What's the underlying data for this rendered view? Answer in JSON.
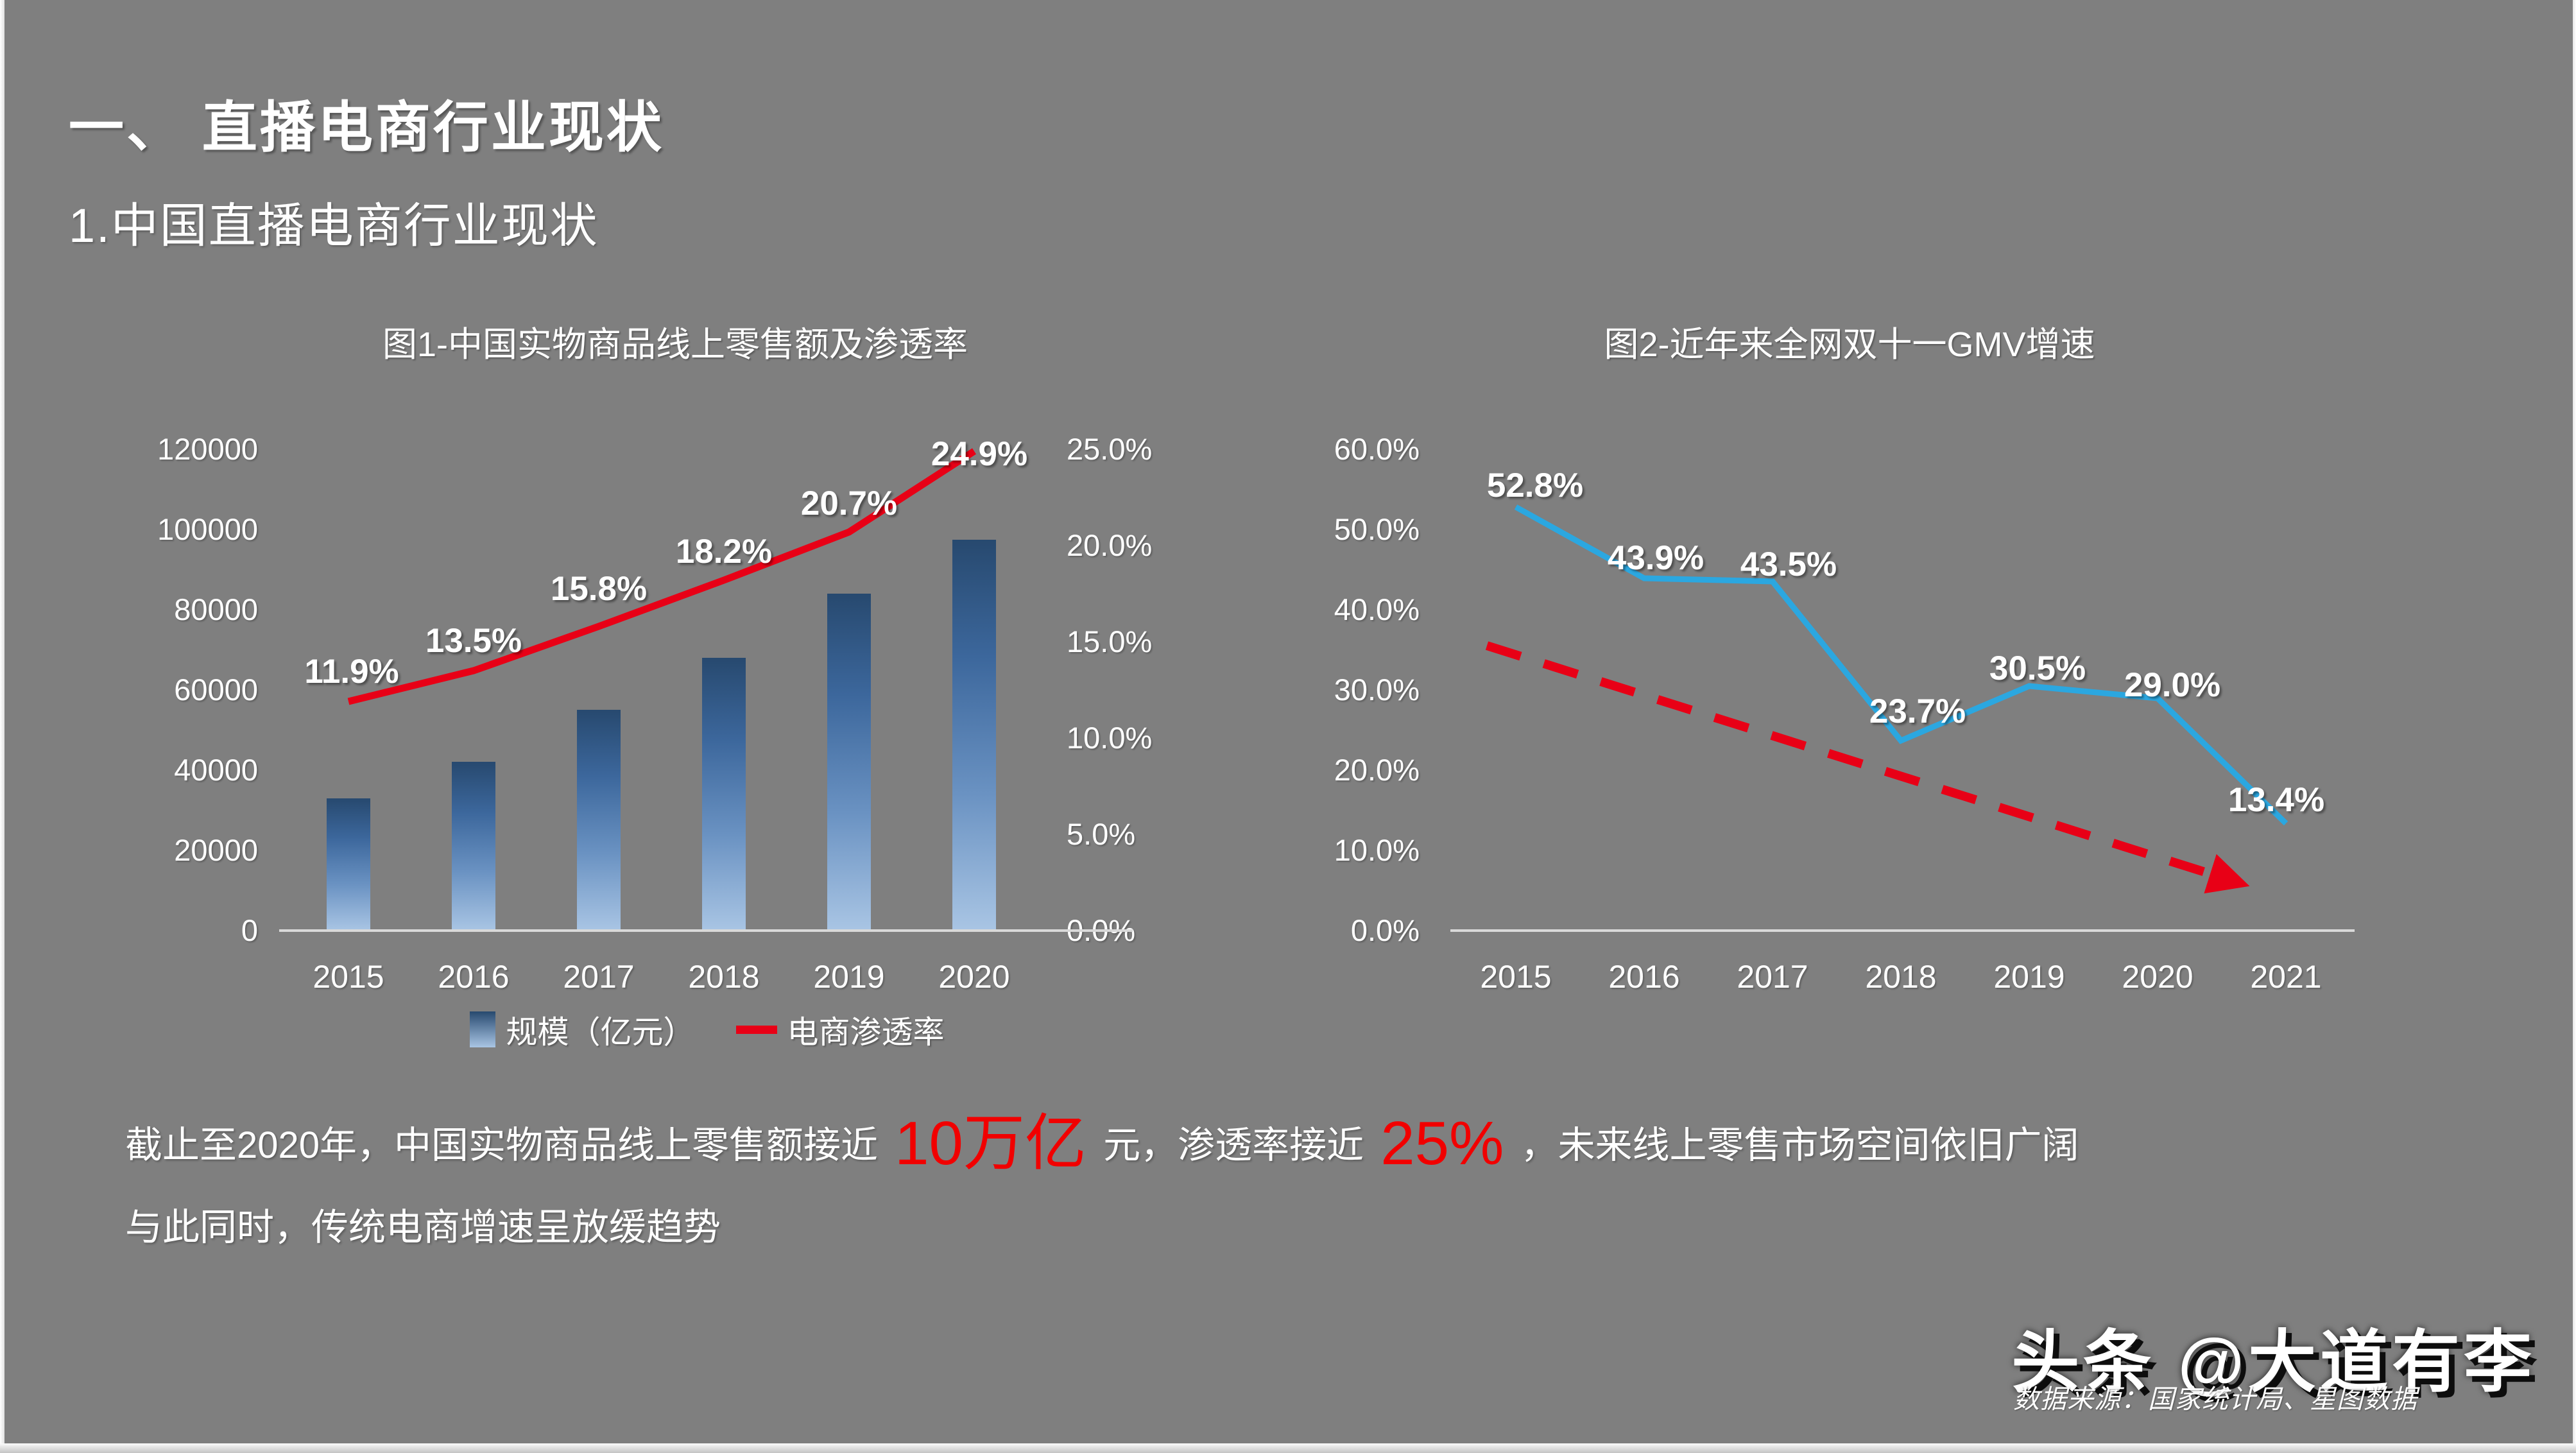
{
  "slide": {
    "section_title": "一、 直播电商行业现状",
    "subtitle": "1.中国直播电商行业现状",
    "paragraph": {
      "line1_part1": "截止至2020年，中国实物商品线上零售额接近",
      "line1_highlight1": "10万亿",
      "line1_part2": "元，渗透率接近",
      "line1_highlight2": "25%",
      "line1_part3": "，未来线上零售市场空间依旧广阔",
      "line2": "与此同时，传统电商增速呈放缓趋势"
    },
    "watermark": "头条 @大道有李",
    "source_note": "数据来源：国家统计局、星图数据"
  },
  "colors": {
    "background": "#7f7f7f",
    "accent_red": "#f10000",
    "line_red": "#e80016",
    "line_blue": "#2ba7e0",
    "bar_gradient_top": "#27496f",
    "bar_gradient_bottom": "#a9c5e4",
    "text_white": "#ffffff"
  },
  "chart_data": [
    {
      "type": "bar",
      "title": "图1-中国实物商品线上零售额及渗透率",
      "categories": [
        "2015",
        "2016",
        "2017",
        "2018",
        "2019",
        "2020"
      ],
      "series": [
        {
          "name": "规模（亿元）",
          "type": "bar",
          "axis": "left",
          "values": [
            33000,
            42000,
            55000,
            68000,
            84000,
            97500
          ]
        },
        {
          "name": "电商渗透率",
          "type": "line",
          "axis": "right",
          "values": [
            11.9,
            13.5,
            15.8,
            18.2,
            20.7,
            24.9
          ],
          "labels": [
            "11.9%",
            "13.5%",
            "15.8%",
            "18.2%",
            "20.7%",
            "24.9%"
          ]
        }
      ],
      "left_axis": {
        "max": 120000,
        "min": 0,
        "ticks": [
          "120000",
          "100000",
          "80000",
          "60000",
          "40000",
          "20000",
          "0"
        ]
      },
      "right_axis": {
        "max": 25,
        "min": 0,
        "ticks": [
          "25.0%",
          "20.0%",
          "15.0%",
          "10.0%",
          "5.0%",
          "0.0%"
        ]
      },
      "legend": [
        {
          "label": "规模（亿元）",
          "marker": "blue-bar-square"
        },
        {
          "label": "电商渗透率",
          "marker": "red-dash"
        }
      ],
      "grid": false,
      "legend_position": "bottom"
    },
    {
      "type": "line",
      "title": "图2-近年来全网双十一GMV增速",
      "categories": [
        "2015",
        "2016",
        "2017",
        "2018",
        "2019",
        "2020",
        "2021"
      ],
      "series": [
        {
          "name": "双十一GMV增速",
          "values": [
            52.8,
            43.9,
            43.5,
            23.7,
            30.5,
            29.0,
            13.4
          ],
          "labels": [
            "52.8%",
            "43.9%",
            "43.5%",
            "23.7%",
            "30.5%",
            "29.0%",
            "13.4%"
          ]
        }
      ],
      "y_axis": {
        "max": 60,
        "min": 0,
        "ticks": [
          "60.0%",
          "50.0%",
          "40.0%",
          "30.0%",
          "20.0%",
          "10.0%",
          "0.0%"
        ]
      },
      "trend_line": {
        "style": "red-dashed-arrow",
        "from": 35.5,
        "to": 6.0
      },
      "grid": false,
      "legend_position": "none"
    }
  ]
}
